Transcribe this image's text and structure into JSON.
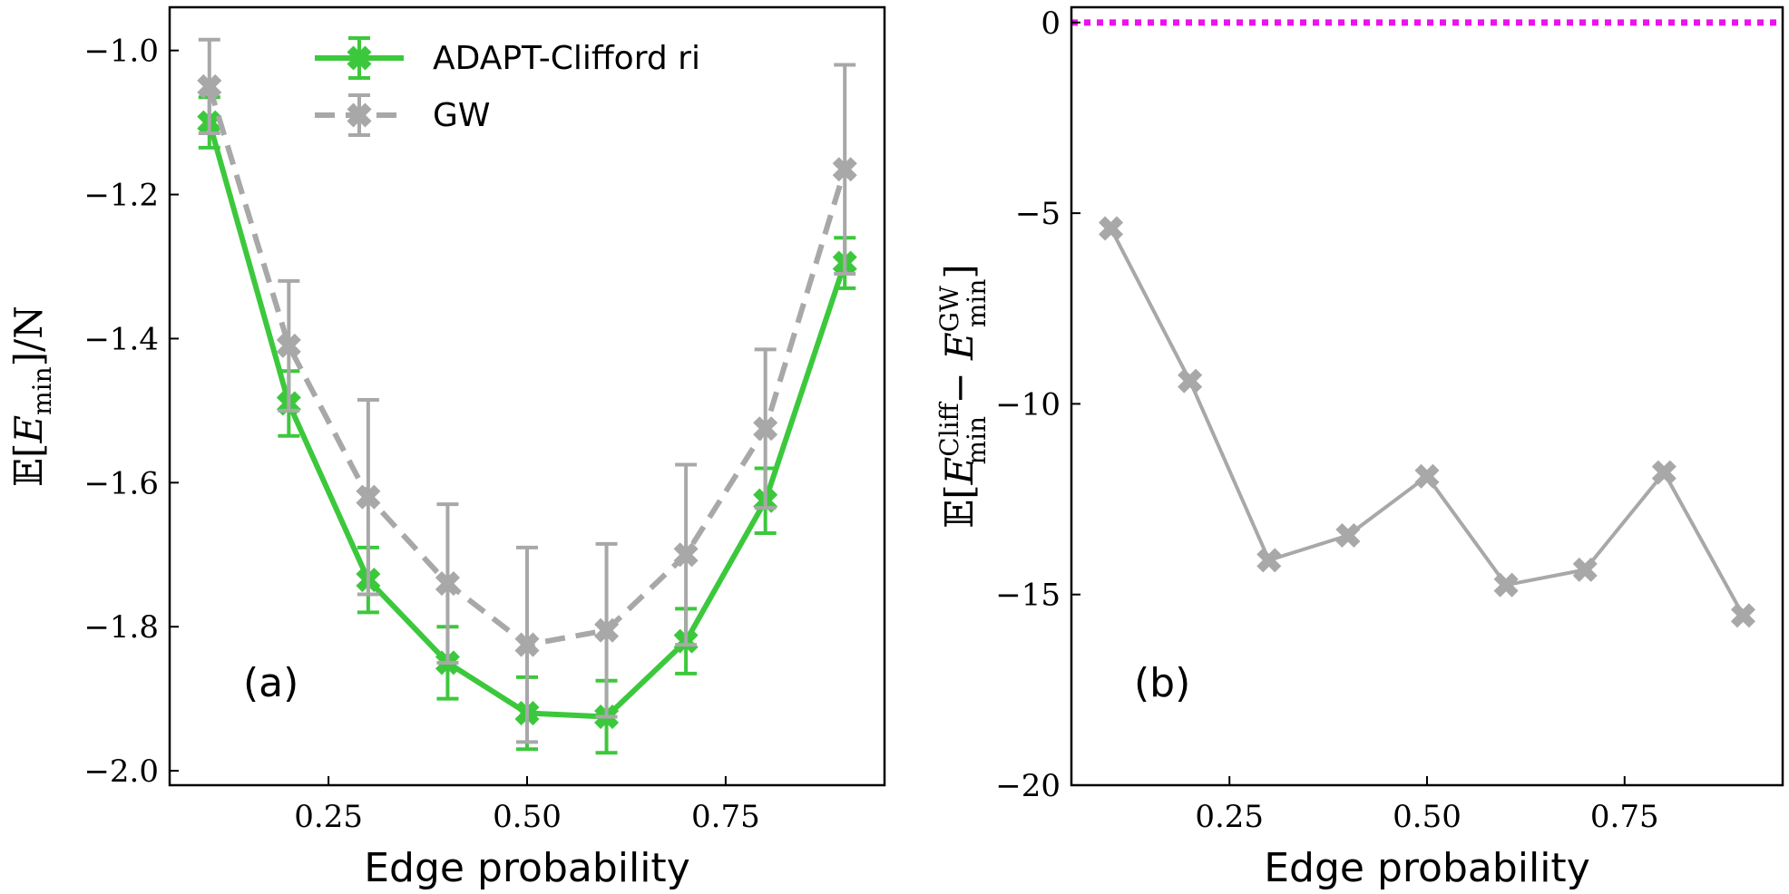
{
  "chart_data": [
    {
      "type": "line",
      "panel_label": "(a)",
      "xlabel": "Edge probability",
      "ylabel": {
        "prefix": "𝔼[",
        "var": "E",
        "sub": "min",
        "suffix": "]/N"
      },
      "xlim": [
        0.05,
        0.95
      ],
      "ylim": [
        -2.02,
        -0.94
      ],
      "xticks": [
        0.25,
        0.5,
        0.75
      ],
      "xtick_labels": [
        "0.25",
        "0.50",
        "0.75"
      ],
      "yticks": [
        -2.0,
        -1.8,
        -1.6,
        -1.4,
        -1.2,
        -1.0
      ],
      "ytick_labels": [
        "−2.0",
        "−1.8",
        "−1.6",
        "−1.4",
        "−1.2",
        "−1.0"
      ],
      "legend_position": "top-center",
      "x": [
        0.1,
        0.2,
        0.3,
        0.4,
        0.5,
        0.6,
        0.7,
        0.8,
        0.9
      ],
      "series": [
        {
          "name": "ADAPT-Clifford ri",
          "color": "#3cc83c",
          "linestyle": "solid",
          "marker": "X",
          "values": [
            -1.1,
            -1.49,
            -1.735,
            -1.85,
            -1.92,
            -1.925,
            -1.82,
            -1.625,
            -1.295
          ],
          "errors": [
            0.035,
            0.045,
            0.045,
            0.05,
            0.05,
            0.05,
            0.045,
            0.045,
            0.035
          ]
        },
        {
          "name": "GW",
          "color": "#a8a8a8",
          "linestyle": "dashed",
          "marker": "X",
          "values": [
            -1.05,
            -1.41,
            -1.62,
            -1.74,
            -1.825,
            -1.805,
            -1.7,
            -1.525,
            -1.165
          ],
          "errors": [
            0.065,
            0.09,
            0.135,
            0.11,
            0.135,
            0.12,
            0.125,
            0.11,
            0.145
          ]
        }
      ]
    },
    {
      "type": "line",
      "panel_label": "(b)",
      "xlabel": "Edge probability",
      "ylabel": {
        "prefix": "𝔼[",
        "var1": "E",
        "sub1": "min",
        "sup1": "Cliff",
        "minus": "−",
        "var2": "E",
        "sub2": "min",
        "sup2": "GW",
        "suffix": "]"
      },
      "xlim": [
        0.05,
        0.95
      ],
      "ylim": [
        -20,
        0.4
      ],
      "xticks": [
        0.25,
        0.5,
        0.75
      ],
      "xtick_labels": [
        "0.25",
        "0.50",
        "0.75"
      ],
      "yticks": [
        -20,
        -15,
        -10,
        -5,
        0
      ],
      "ytick_labels": [
        "−20",
        "−15",
        "−10",
        "−5",
        "0"
      ],
      "reference_line": {
        "y": 0,
        "color": "#ee10ee",
        "linestyle": "dotted"
      },
      "x": [
        0.1,
        0.2,
        0.3,
        0.4,
        0.5,
        0.6,
        0.7,
        0.8,
        0.9
      ],
      "series": [
        {
          "color": "#a8a8a8",
          "linestyle": "solid",
          "marker": "X",
          "values": [
            -5.4,
            -9.4,
            -14.1,
            -13.45,
            -11.9,
            -14.75,
            -14.35,
            -11.8,
            -15.55
          ]
        }
      ]
    }
  ]
}
